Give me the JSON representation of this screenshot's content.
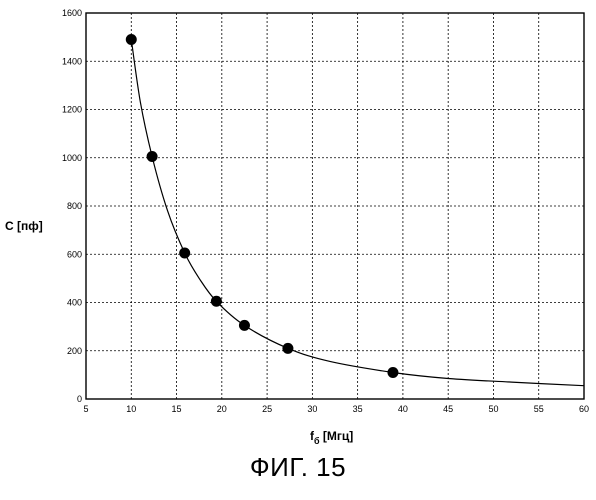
{
  "chart_data": {
    "type": "scatter",
    "xlabel_main": "f",
    "xlabel_sub": "б",
    "xlabel_unit": "[Мгц]",
    "ylabel_main": "C",
    "ylabel_unit": "[пф]",
    "xlim": [
      5,
      60
    ],
    "ylim": [
      0,
      1600
    ],
    "xticks": [
      5,
      10,
      15,
      20,
      25,
      30,
      35,
      40,
      45,
      50,
      55,
      60
    ],
    "yticks": [
      0,
      200,
      400,
      600,
      800,
      1000,
      1200,
      1400,
      1600
    ],
    "grid": true,
    "series": [
      {
        "points": [
          {
            "x": 10.0,
            "y": 1490
          },
          {
            "x": 12.3,
            "y": 1005
          },
          {
            "x": 15.9,
            "y": 605
          },
          {
            "x": 19.4,
            "y": 405
          },
          {
            "x": 22.5,
            "y": 305
          },
          {
            "x": 27.3,
            "y": 210
          },
          {
            "x": 38.9,
            "y": 110
          }
        ],
        "fit_curve": [
          {
            "x": 10.0,
            "y": 1490
          },
          {
            "x": 11.0,
            "y": 1232
          },
          {
            "x": 12.3,
            "y": 1005
          },
          {
            "x": 14.0,
            "y": 781
          },
          {
            "x": 15.9,
            "y": 605
          },
          {
            "x": 17.5,
            "y": 500
          },
          {
            "x": 19.4,
            "y": 405
          },
          {
            "x": 22.5,
            "y": 305
          },
          {
            "x": 27.3,
            "y": 210
          },
          {
            "x": 32.0,
            "y": 155
          },
          {
            "x": 38.9,
            "y": 110
          },
          {
            "x": 45.0,
            "y": 85
          },
          {
            "x": 52.0,
            "y": 70
          },
          {
            "x": 60.0,
            "y": 55
          }
        ]
      }
    ]
  },
  "figure": {
    "caption": "ФИГ. 15"
  }
}
